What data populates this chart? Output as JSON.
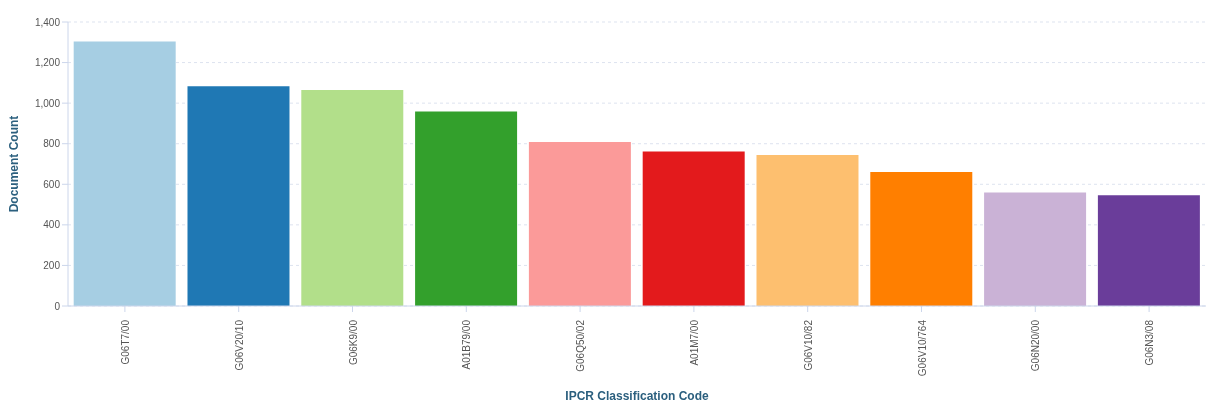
{
  "chart_data": {
    "type": "bar",
    "xlabel": "IPCR Classification Code",
    "ylabel": "Document Count",
    "categories": [
      "G06T7/00",
      "G06V20/10",
      "G06K9/00",
      "A01B79/00",
      "G06Q50/02",
      "A01M7/00",
      "G06V10/82",
      "G06V10/764",
      "G06N20/00",
      "G06N3/08"
    ],
    "values": [
      1304,
      1083,
      1065,
      959,
      808,
      762,
      744,
      661,
      560,
      546
    ],
    "colors": [
      "#a6cee3",
      "#1f78b4",
      "#b2df8a",
      "#33a02c",
      "#fb9a99",
      "#e31a1c",
      "#fdbf6f",
      "#ff7f00",
      "#cab2d6",
      "#6a3d9a"
    ],
    "ylim": [
      0,
      1400
    ],
    "yticks": [
      0,
      200,
      400,
      600,
      800,
      {
        "value": 1000,
        "label": "1,000"
      },
      {
        "value": 1200,
        "label": "1,200"
      },
      {
        "value": 1400,
        "label": "1,400"
      }
    ],
    "grid": "y"
  }
}
